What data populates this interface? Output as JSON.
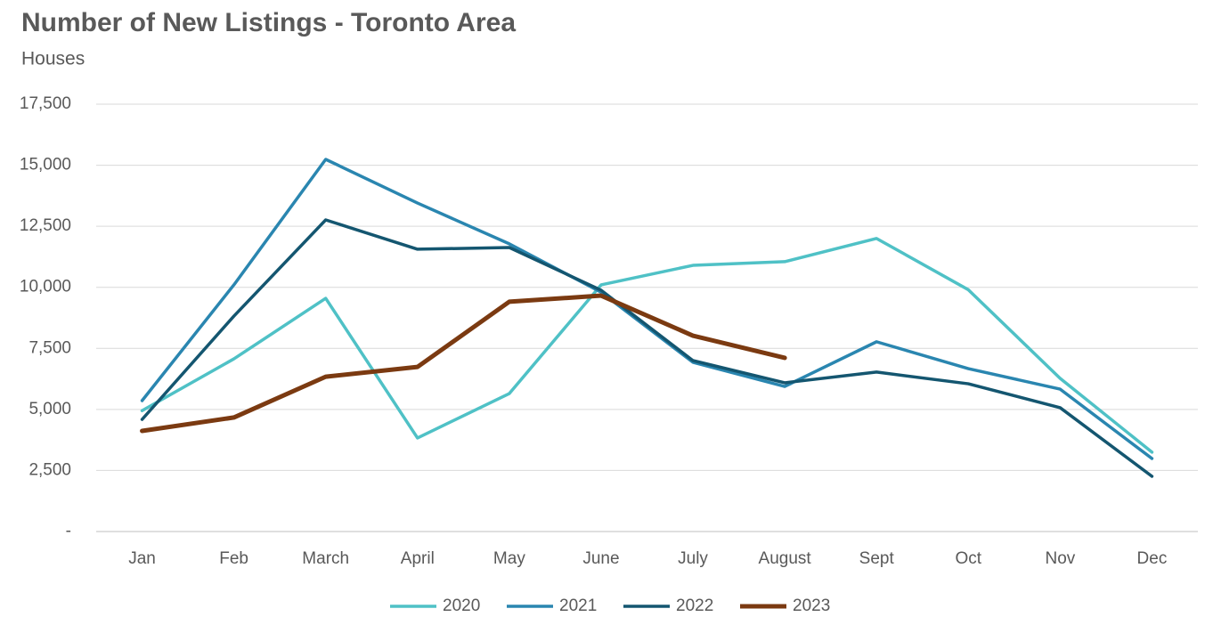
{
  "chart_data": {
    "type": "line",
    "title": "Number of New Listings - Toronto Area",
    "subtitle": "Houses",
    "categories": [
      "Jan",
      "Feb",
      "March",
      "April",
      "May",
      "June",
      "July",
      "August",
      "Sept",
      "Oct",
      "Nov",
      "Dec"
    ],
    "series": [
      {
        "name": "2020",
        "color": "#4fc1c6",
        "values": [
          4950,
          7070,
          9550,
          3830,
          5650,
          10100,
          10900,
          11050,
          12000,
          9900,
          6270,
          3250
        ]
      },
      {
        "name": "2021",
        "color": "#2a86b0",
        "values": [
          5360,
          10100,
          15240,
          13450,
          11780,
          9800,
          6930,
          5940,
          7770,
          6670,
          5830,
          2990
        ]
      },
      {
        "name": "2022",
        "color": "#145670",
        "values": [
          4590,
          8820,
          12760,
          11560,
          11630,
          9880,
          7000,
          6090,
          6530,
          6050,
          5070,
          2260
        ]
      },
      {
        "name": "2023",
        "color": "#7b3a11",
        "values": [
          4120,
          4670,
          6340,
          6740,
          9410,
          9660,
          8020,
          7110,
          null,
          null,
          null,
          null
        ]
      }
    ],
    "ylim": [
      0,
      17500
    ],
    "yticks": [
      {
        "value": 0,
        "label": "-"
      },
      {
        "value": 2500,
        "label": "2,500"
      },
      {
        "value": 5000,
        "label": "5,000"
      },
      {
        "value": 7500,
        "label": "7,500"
      },
      {
        "value": 10000,
        "label": "10,000"
      },
      {
        "value": 12500,
        "label": "12,500"
      },
      {
        "value": 15000,
        "label": "15,000"
      },
      {
        "value": 17500,
        "label": "17,500"
      }
    ],
    "grid": true,
    "legend": "bottom"
  }
}
